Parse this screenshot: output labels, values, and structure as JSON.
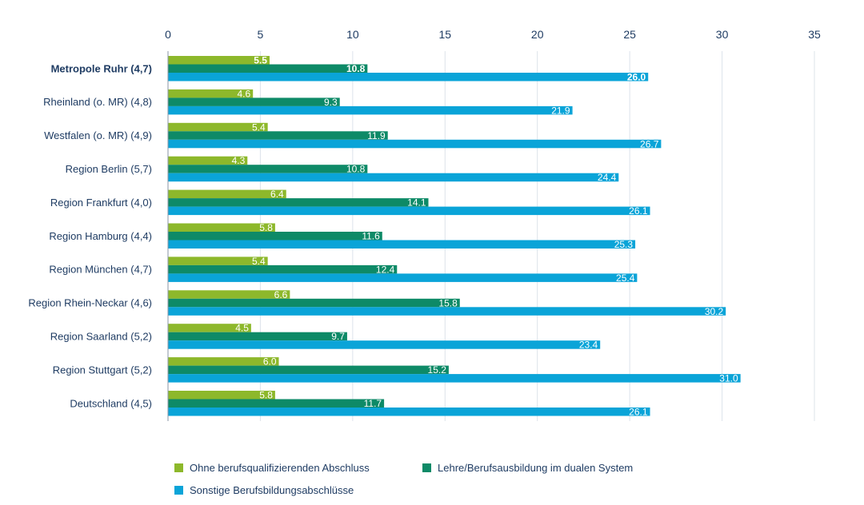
{
  "chart_data": {
    "type": "bar",
    "orientation": "horizontal",
    "xlim": [
      0,
      35
    ],
    "x_ticks": [
      0,
      5,
      10,
      15,
      20,
      25,
      30,
      35
    ],
    "grid": true,
    "legend_position": "bottom-left",
    "categories": [
      "Metropole Ruhr (4,7)",
      "Rheinland (o. MR) (4,8)",
      "Westfalen (o. MR) (4,9)",
      "Region Berlin (5,7)",
      "Region Frankfurt (4,0)",
      "Region Hamburg (4,4)",
      "Region München (4,7)",
      "Region Rhein-Neckar (4,6)",
      "Region Saarland (5,2)",
      "Region Stuttgart (5,2)",
      "Deutschland (4,5)"
    ],
    "highlight_category": "Metropole Ruhr (4,7)",
    "series": [
      {
        "name": "Ohne berufsqualifizierenden Abschluss",
        "color": "#8db82b",
        "values": [
          5.5,
          4.6,
          5.4,
          4.3,
          6.4,
          5.8,
          5.4,
          6.6,
          4.5,
          6.0,
          5.8
        ]
      },
      {
        "name": "Lehre/Berufsausbildung im dualen System",
        "color": "#0e8a67",
        "values": [
          10.8,
          9.3,
          11.9,
          10.8,
          14.1,
          11.6,
          12.4,
          15.8,
          9.7,
          15.2,
          11.7
        ]
      },
      {
        "name": "Sonstige Berufsbildungsabschlüsse",
        "color": "#0aa4d8",
        "values": [
          26.0,
          21.9,
          26.7,
          24.4,
          26.1,
          25.3,
          25.4,
          30.2,
          23.4,
          31.0,
          26.1
        ]
      }
    ]
  }
}
